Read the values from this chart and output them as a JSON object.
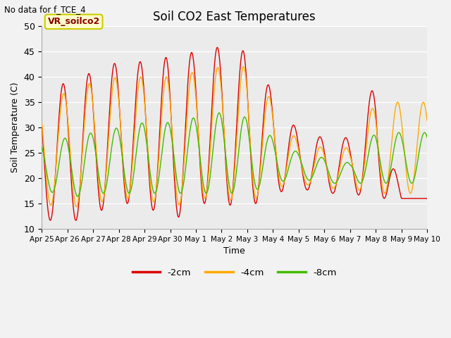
{
  "title": "Soil CO2 East Temperatures",
  "top_left_text": "No data for f_TCE_4",
  "legend_box_label": "VR_soilco2",
  "xlabel": "Time",
  "ylabel": "Soil Temperature (C)",
  "ylim": [
    10,
    50
  ],
  "tick_labels": [
    "Apr 25",
    "Apr 26",
    "Apr 27",
    "Apr 28",
    "Apr 29",
    "Apr 30",
    "May 1",
    "May 2",
    "May 3",
    "May 4",
    "May 5",
    "May 6",
    "May 7",
    "May 8",
    "May 9",
    "May 10"
  ],
  "fig_bg": "#f2f2f2",
  "plot_bg": "#ebebeb",
  "line_colors": {
    "red": "#dd0000",
    "orange": "#ffaa00",
    "green": "#44bb00"
  },
  "legend_entries": [
    "-2cm",
    "-4cm",
    "-8cm"
  ],
  "red_peaks": [
    37,
    39,
    41,
    43,
    43,
    44,
    45,
    46,
    45,
    37,
    29,
    28,
    28,
    39,
    16
  ],
  "red_troughs": [
    12,
    11,
    13,
    15,
    15,
    11,
    15,
    15,
    14,
    17,
    18,
    17,
    17,
    16,
    16
  ],
  "orange_peaks": [
    35,
    37,
    39,
    40,
    40,
    40,
    41,
    42,
    42,
    35,
    27,
    26,
    26,
    35,
    35
  ],
  "orange_troughs": [
    15,
    14,
    15,
    16,
    16,
    14,
    16,
    16,
    15,
    18,
    19,
    18,
    18,
    17,
    17
  ],
  "green_peaks": [
    27,
    28,
    29,
    30,
    31,
    31,
    32,
    33,
    32,
    28,
    25,
    24,
    23,
    29,
    29
  ],
  "green_troughs": [
    18,
    16,
    17,
    17,
    17,
    17,
    17,
    17,
    17,
    19,
    20,
    19,
    19,
    19,
    19
  ],
  "peak_phase_red": 0.58,
  "peak_phase_orange": 0.6,
  "peak_phase_green": 0.65
}
